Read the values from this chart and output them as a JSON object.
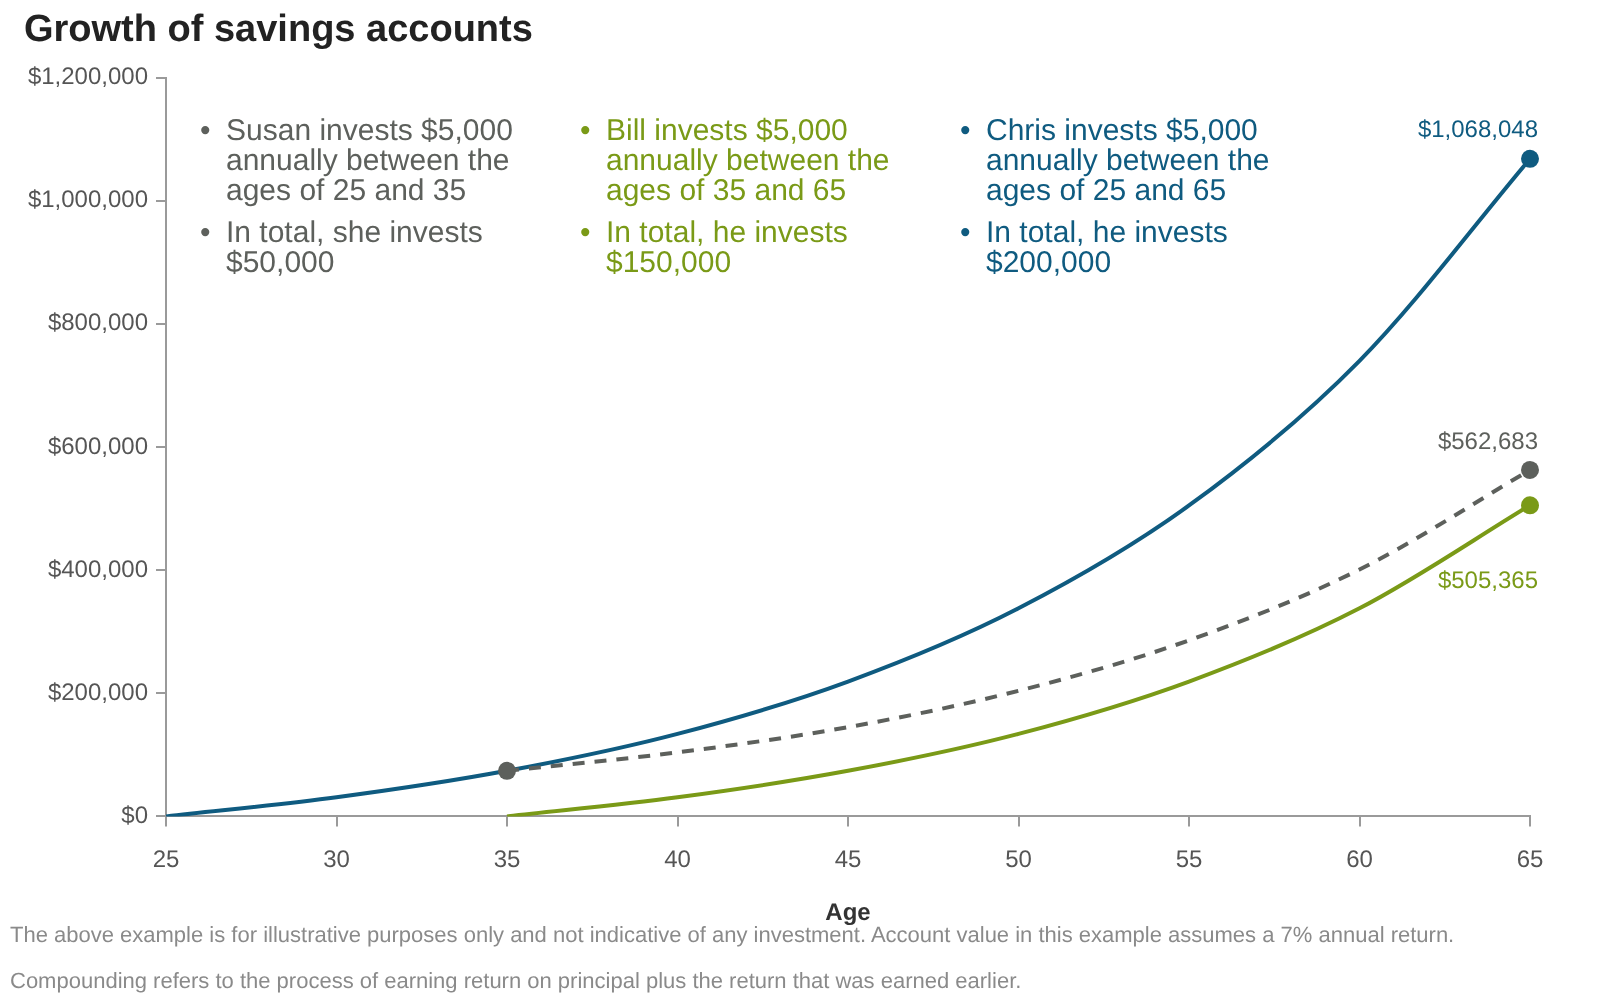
{
  "chart_data": {
    "type": "line",
    "title": "Growth of savings accounts",
    "xlabel": "Age",
    "x": [
      25,
      30,
      35,
      40,
      45,
      50,
      55,
      60,
      65
    ],
    "series": [
      {
        "color": "#5d605c",
        "line_style": "dashed",
        "values": [
          null,
          null,
          74000,
          104000,
          145000,
          204000,
          286000,
          401000,
          562683
        ]
      },
      {
        "color": "#7a9a17",
        "values": [
          null,
          null,
          0,
          31000,
          74000,
          134000,
          219000,
          338000,
          505365
        ]
      },
      {
        "color": "#0f5b80",
        "values": [
          0,
          31000,
          74000,
          134000,
          219000,
          338000,
          505000,
          740000,
          1068048
        ]
      },
      {
        "type": "scatter",
        "marker": "circle",
        "color": "#5d605c",
        "values": [
          null,
          null,
          74000,
          null,
          null,
          null,
          null,
          null,
          562683
        ],
        "value_labels": [
          null,
          null,
          null,
          null,
          null,
          null,
          null,
          null,
          "$562,683"
        ]
      },
      {
        "type": "scatter",
        "marker": "circle",
        "color": "#7a9a17",
        "values": [
          null,
          null,
          null,
          null,
          null,
          null,
          null,
          null,
          505365
        ],
        "value_labels": [
          null,
          null,
          null,
          null,
          null,
          null,
          null,
          null,
          "$505,365"
        ]
      },
      {
        "type": "scatter",
        "marker": "circle",
        "color": "#0f5b80",
        "values": [
          null,
          null,
          null,
          null,
          null,
          null,
          null,
          null,
          1068048
        ],
        "value_labels": [
          null,
          null,
          null,
          null,
          null,
          null,
          null,
          null,
          "$1,068,048"
        ]
      }
    ],
    "xlim": [
      25,
      65
    ],
    "xticks": [
      25,
      30,
      35,
      40,
      45,
      50,
      55,
      60,
      65
    ],
    "ylim": [
      0,
      1200000
    ],
    "yticks": [
      {
        "value": 0,
        "label": "$0"
      },
      {
        "value": 200000,
        "label": "$200,000"
      },
      {
        "value": 400000,
        "label": "$400,000"
      },
      {
        "value": 600000,
        "label": "$600,000"
      },
      {
        "value": 800000,
        "label": "$800,000"
      },
      {
        "value": 1000000,
        "label": "$1,000,000"
      },
      {
        "value": 1200000,
        "label": "$1,200,000"
      }
    ],
    "annotations": [
      "• Susan invests $5,000 annually between the ages of 25 and 35",
      "• In total, she invests $50,000",
      "• Bill invests $5,000 annually between the ages of 35 and 65",
      "• In total, he invests $150,000",
      "• Chris invests $5,000 annually between the ages of 25 and 65",
      "• In total, he invests $200,000",
      "The above example is for illustrative purposes only and not indicative of any investment. Account value in this example assumes a 7% annual return.",
      "Compounding refers to the process of earning return on principal plus the return that was earned earlier."
    ]
  }
}
